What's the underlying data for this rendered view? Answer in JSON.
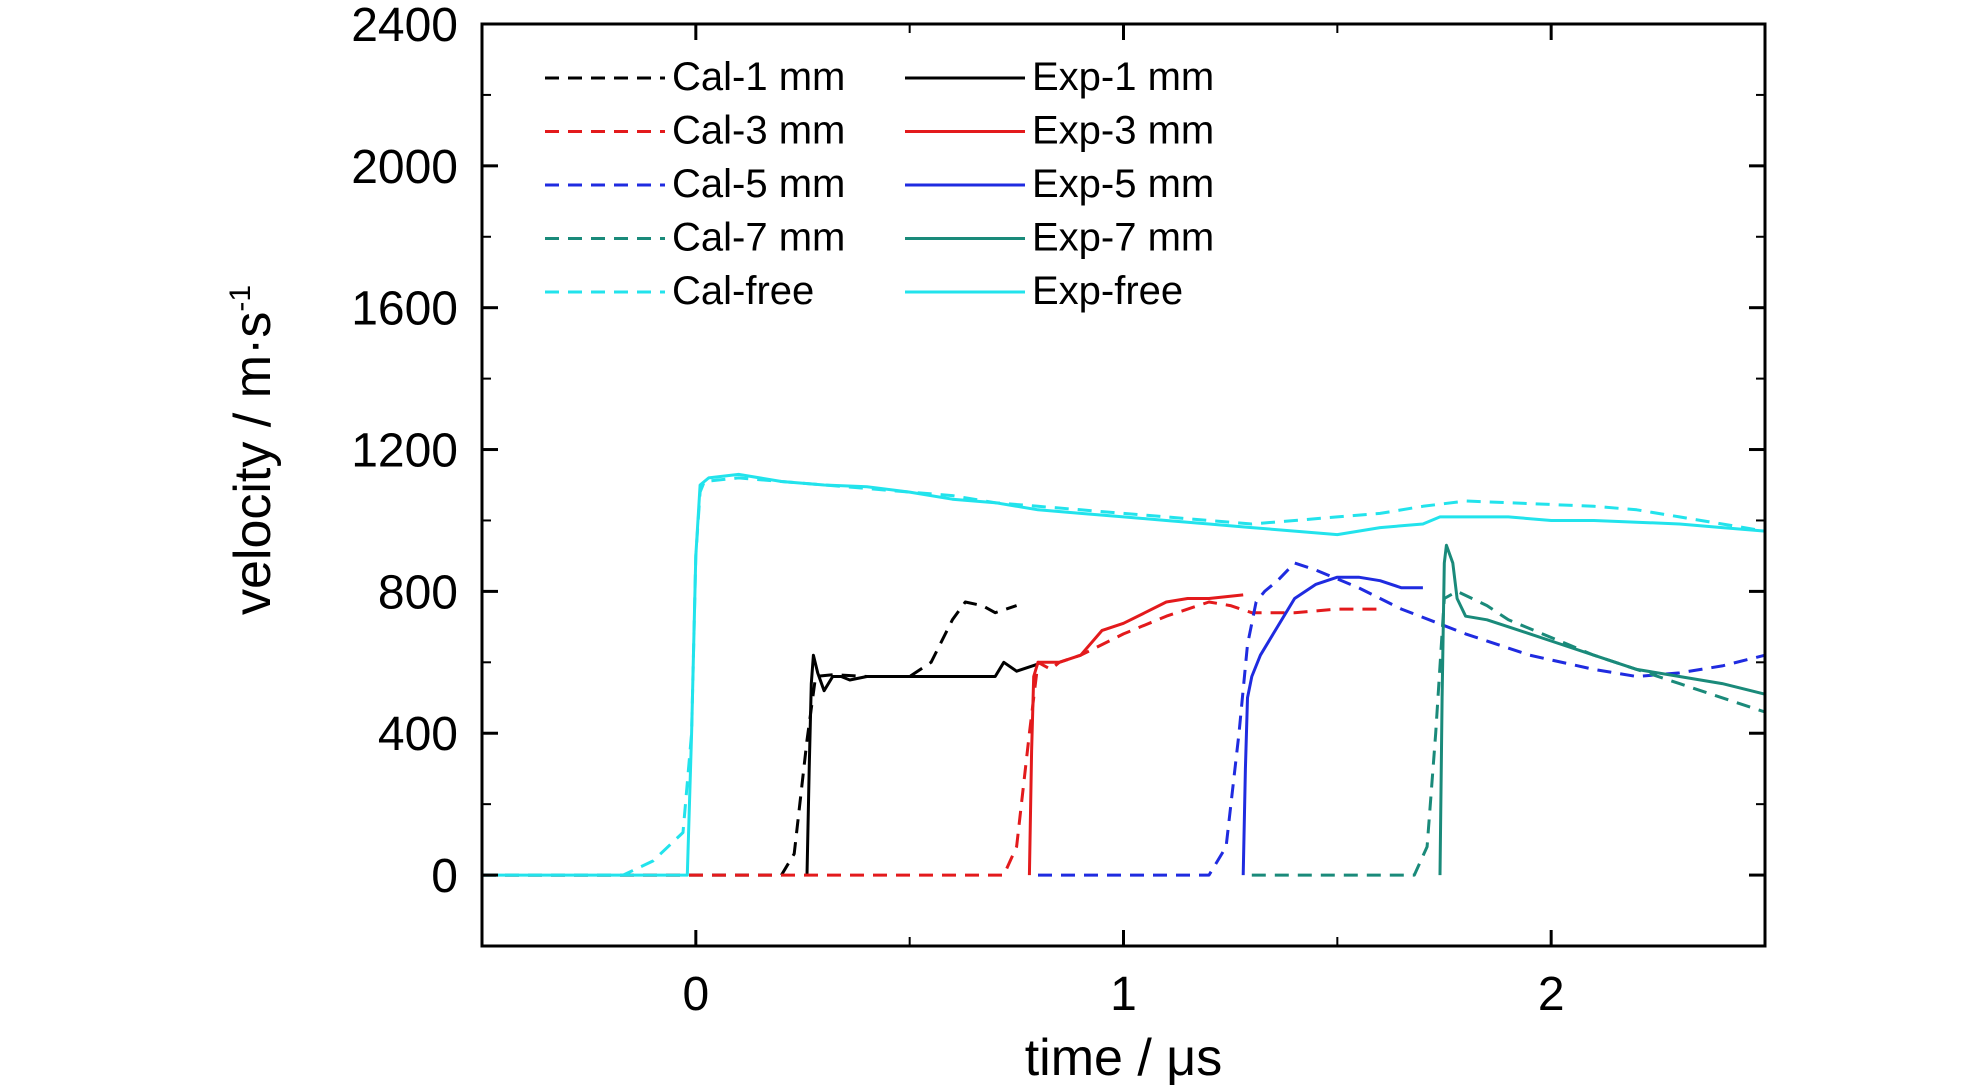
{
  "chart_data": {
    "type": "line",
    "xlabel": "time / μs",
    "ylabel": "velocity / m·s",
    "ylabel_superscript": "-1",
    "xlim": [
      -0.5,
      2.5
    ],
    "ylim": [
      -200,
      2400
    ],
    "x_ticks": [
      "0",
      "1",
      "2"
    ],
    "y_ticks": [
      "0",
      "400",
      "800",
      "1200",
      "1600",
      "2000",
      "2400"
    ],
    "grid": false,
    "legend_position": "top-left",
    "series": [
      {
        "name": "Cal-1 mm",
        "style": "dashed",
        "color": "#000000",
        "points": [
          [
            -0.5,
            0
          ],
          [
            0.2,
            0
          ],
          [
            0.23,
            60
          ],
          [
            0.26,
            380
          ],
          [
            0.28,
            560
          ],
          [
            0.32,
            565
          ],
          [
            0.4,
            560
          ],
          [
            0.5,
            560
          ],
          [
            0.55,
            600
          ],
          [
            0.6,
            720
          ],
          [
            0.63,
            770
          ],
          [
            0.67,
            760
          ],
          [
            0.7,
            740
          ],
          [
            0.75,
            760
          ]
        ]
      },
      {
        "name": "Exp-1 mm",
        "style": "solid",
        "color": "#000000",
        "points": [
          [
            0.26,
            0
          ],
          [
            0.265,
            300
          ],
          [
            0.27,
            540
          ],
          [
            0.275,
            620
          ],
          [
            0.285,
            570
          ],
          [
            0.3,
            520
          ],
          [
            0.32,
            560
          ],
          [
            0.34,
            560
          ],
          [
            0.36,
            550
          ],
          [
            0.4,
            560
          ],
          [
            0.5,
            560
          ],
          [
            0.6,
            560
          ],
          [
            0.7,
            560
          ],
          [
            0.72,
            600
          ],
          [
            0.75,
            575
          ],
          [
            0.8,
            595
          ]
        ]
      },
      {
        "name": "Cal-3 mm",
        "style": "dashed",
        "color": "#e31a1c",
        "points": [
          [
            -0.5,
            0
          ],
          [
            0.72,
            0
          ],
          [
            0.75,
            80
          ],
          [
            0.78,
            400
          ],
          [
            0.8,
            600
          ],
          [
            0.83,
            580
          ],
          [
            0.85,
            600
          ],
          [
            0.9,
            620
          ],
          [
            1.0,
            680
          ],
          [
            1.1,
            730
          ],
          [
            1.2,
            770
          ],
          [
            1.25,
            760
          ],
          [
            1.3,
            740
          ],
          [
            1.4,
            740
          ],
          [
            1.5,
            750
          ],
          [
            1.6,
            750
          ]
        ]
      },
      {
        "name": "Exp-3 mm",
        "style": "solid",
        "color": "#e31a1c",
        "points": [
          [
            0.78,
            0
          ],
          [
            0.785,
            350
          ],
          [
            0.79,
            560
          ],
          [
            0.8,
            600
          ],
          [
            0.85,
            600
          ],
          [
            0.9,
            620
          ],
          [
            0.95,
            690
          ],
          [
            1.0,
            710
          ],
          [
            1.05,
            740
          ],
          [
            1.1,
            770
          ],
          [
            1.15,
            780
          ],
          [
            1.2,
            780
          ],
          [
            1.28,
            790
          ]
        ]
      },
      {
        "name": "Cal-5 mm",
        "style": "dashed",
        "color": "#1f2be0",
        "points": [
          [
            0.8,
            0
          ],
          [
            1.2,
            0
          ],
          [
            1.24,
            80
          ],
          [
            1.27,
            400
          ],
          [
            1.29,
            650
          ],
          [
            1.31,
            770
          ],
          [
            1.33,
            800
          ],
          [
            1.36,
            830
          ],
          [
            1.4,
            880
          ],
          [
            1.45,
            860
          ],
          [
            1.55,
            810
          ],
          [
            1.65,
            750
          ],
          [
            1.8,
            680
          ],
          [
            1.95,
            620
          ],
          [
            2.1,
            580
          ],
          [
            2.2,
            560
          ],
          [
            2.3,
            570
          ],
          [
            2.4,
            590
          ],
          [
            2.5,
            620
          ]
        ]
      },
      {
        "name": "Exp-5 mm",
        "style": "solid",
        "color": "#1f2be0",
        "points": [
          [
            1.28,
            0
          ],
          [
            1.285,
            300
          ],
          [
            1.29,
            500
          ],
          [
            1.3,
            560
          ],
          [
            1.32,
            620
          ],
          [
            1.35,
            680
          ],
          [
            1.4,
            780
          ],
          [
            1.45,
            820
          ],
          [
            1.5,
            840
          ],
          [
            1.55,
            840
          ],
          [
            1.6,
            830
          ],
          [
            1.65,
            810
          ],
          [
            1.7,
            810
          ]
        ]
      },
      {
        "name": "Cal-7 mm",
        "style": "dashed",
        "color": "#1a8a7a",
        "points": [
          [
            1.3,
            0
          ],
          [
            1.68,
            0
          ],
          [
            1.71,
            80
          ],
          [
            1.73,
            400
          ],
          [
            1.75,
            780
          ],
          [
            1.78,
            800
          ],
          [
            1.85,
            760
          ],
          [
            1.9,
            720
          ],
          [
            2.0,
            670
          ],
          [
            2.1,
            620
          ],
          [
            2.2,
            580
          ],
          [
            2.3,
            540
          ],
          [
            2.4,
            500
          ],
          [
            2.5,
            460
          ]
        ]
      },
      {
        "name": "Exp-7 mm",
        "style": "solid",
        "color": "#1a8a7a",
        "points": [
          [
            1.74,
            0
          ],
          [
            1.745,
            500
          ],
          [
            1.75,
            880
          ],
          [
            1.755,
            930
          ],
          [
            1.77,
            880
          ],
          [
            1.78,
            780
          ],
          [
            1.8,
            730
          ],
          [
            1.85,
            720
          ],
          [
            1.9,
            700
          ],
          [
            2.0,
            660
          ],
          [
            2.1,
            620
          ],
          [
            2.2,
            580
          ],
          [
            2.3,
            560
          ],
          [
            2.4,
            540
          ],
          [
            2.5,
            510
          ]
        ]
      },
      {
        "name": "Cal-free",
        "style": "dashed",
        "color": "#22e3ec",
        "points": [
          [
            -0.5,
            0
          ],
          [
            -0.17,
            0
          ],
          [
            -0.1,
            40
          ],
          [
            -0.03,
            120
          ],
          [
            -0.01,
            400
          ],
          [
            0.0,
            900
          ],
          [
            0.01,
            1080
          ],
          [
            0.02,
            1110
          ],
          [
            0.1,
            1120
          ],
          [
            0.2,
            1110
          ],
          [
            0.3,
            1100
          ],
          [
            0.4,
            1090
          ],
          [
            0.5,
            1080
          ],
          [
            0.6,
            1070
          ],
          [
            0.7,
            1050
          ],
          [
            0.8,
            1040
          ],
          [
            0.9,
            1030
          ],
          [
            1.0,
            1020
          ],
          [
            1.1,
            1010
          ],
          [
            1.2,
            1000
          ],
          [
            1.3,
            990
          ],
          [
            1.4,
            1000
          ],
          [
            1.5,
            1010
          ],
          [
            1.6,
            1020
          ],
          [
            1.7,
            1040
          ],
          [
            1.8,
            1055
          ],
          [
            1.9,
            1050
          ],
          [
            2.0,
            1045
          ],
          [
            2.1,
            1040
          ],
          [
            2.2,
            1030
          ],
          [
            2.3,
            1010
          ],
          [
            2.4,
            990
          ],
          [
            2.5,
            970
          ]
        ]
      },
      {
        "name": "Exp-free",
        "style": "solid",
        "color": "#22e3ec",
        "points": [
          [
            -0.5,
            0
          ],
          [
            -0.02,
            0
          ],
          [
            -0.01,
            400
          ],
          [
            0.0,
            900
          ],
          [
            0.01,
            1100
          ],
          [
            0.03,
            1120
          ],
          [
            0.1,
            1130
          ],
          [
            0.2,
            1110
          ],
          [
            0.3,
            1100
          ],
          [
            0.4,
            1095
          ],
          [
            0.5,
            1080
          ],
          [
            0.6,
            1060
          ],
          [
            0.7,
            1050
          ],
          [
            0.8,
            1030
          ],
          [
            0.9,
            1020
          ],
          [
            1.0,
            1010
          ],
          [
            1.1,
            1000
          ],
          [
            1.2,
            990
          ],
          [
            1.3,
            980
          ],
          [
            1.4,
            970
          ],
          [
            1.5,
            960
          ],
          [
            1.6,
            980
          ],
          [
            1.7,
            990
          ],
          [
            1.74,
            1010
          ],
          [
            1.8,
            1010
          ],
          [
            1.9,
            1010
          ],
          [
            2.0,
            1000
          ],
          [
            2.1,
            1000
          ],
          [
            2.2,
            995
          ],
          [
            2.3,
            990
          ],
          [
            2.4,
            980
          ],
          [
            2.5,
            970
          ]
        ]
      }
    ]
  }
}
